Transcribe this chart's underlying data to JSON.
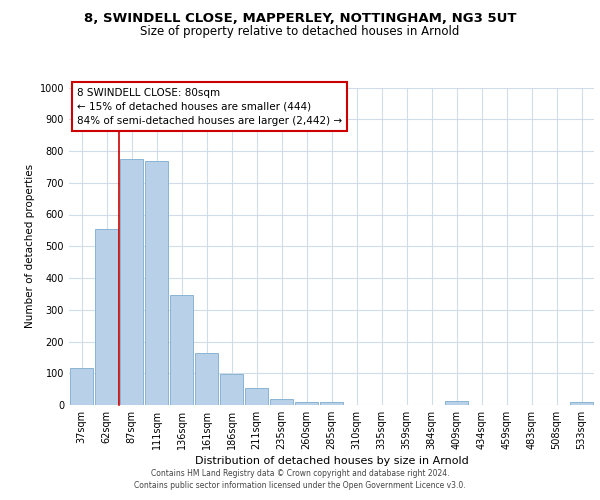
{
  "title1": "8, SWINDELL CLOSE, MAPPERLEY, NOTTINGHAM, NG3 5UT",
  "title2": "Size of property relative to detached houses in Arnold",
  "xlabel": "Distribution of detached houses by size in Arnold",
  "ylabel": "Number of detached properties",
  "bar_labels": [
    "37sqm",
    "62sqm",
    "87sqm",
    "111sqm",
    "136sqm",
    "161sqm",
    "186sqm",
    "211sqm",
    "235sqm",
    "260sqm",
    "285sqm",
    "310sqm",
    "335sqm",
    "359sqm",
    "384sqm",
    "409sqm",
    "434sqm",
    "459sqm",
    "483sqm",
    "508sqm",
    "533sqm"
  ],
  "bar_values": [
    115,
    555,
    775,
    770,
    348,
    165,
    98,
    55,
    18,
    10,
    10,
    0,
    0,
    0,
    0,
    12,
    0,
    0,
    0,
    0,
    10
  ],
  "bar_color": "#b8d0e8",
  "bar_edge_color": "#8ab4d4",
  "red_line_x": 1.5,
  "red_line_color": "#cc0000",
  "annotation_title": "8 SWINDELL CLOSE: 80sqm",
  "annotation_line1": "← 15% of detached houses are smaller (444)",
  "annotation_line2": "84% of semi-detached houses are larger (2,442) →",
  "annotation_box_facecolor": "#ffffff",
  "annotation_box_edgecolor": "#cc0000",
  "ylim": [
    0,
    1000
  ],
  "yticks": [
    0,
    100,
    200,
    300,
    400,
    500,
    600,
    700,
    800,
    900,
    1000
  ],
  "grid_color": "#d0dde8",
  "footer1": "Contains HM Land Registry data © Crown copyright and database right 2024.",
  "footer2": "Contains public sector information licensed under the Open Government Licence v3.0.",
  "title1_fontsize": 9.5,
  "title2_fontsize": 8.5,
  "xlabel_fontsize": 8,
  "ylabel_fontsize": 7.5,
  "tick_fontsize": 7,
  "footer_fontsize": 5.5,
  "annotation_fontsize": 7.5
}
